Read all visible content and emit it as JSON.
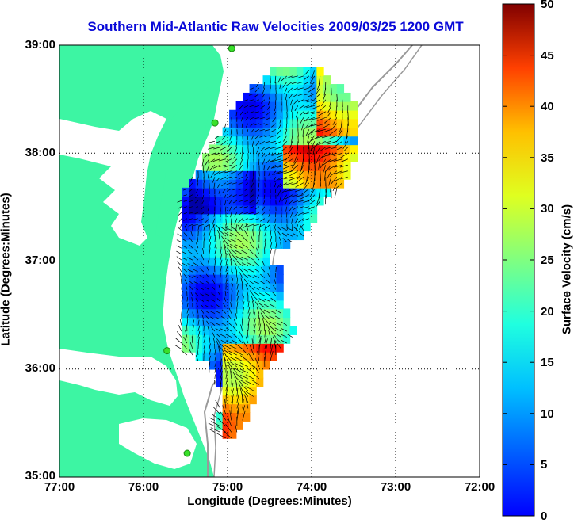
{
  "title": "Southern Mid-Atlantic Raw Velocities 2009/03/25 1200 GMT",
  "xaxis": {
    "label": "Longitude (Degrees:Minutes)",
    "ticks": [
      "77:00",
      "76:00",
      "75:00",
      "74:00",
      "73:00",
      "72:00"
    ],
    "range": [
      -77,
      -72
    ]
  },
  "yaxis": {
    "label": "Latitude (Degrees:Minutes)",
    "ticks": [
      "39:00",
      "38:00",
      "37:00",
      "36:00",
      "35:00"
    ],
    "range": [
      35,
      39
    ]
  },
  "colorbar": {
    "label": "Surface Velocity (cm/s)",
    "ticks": [
      "50",
      "45",
      "40",
      "35",
      "30",
      "25",
      "20",
      "15",
      "10",
      "5",
      "0"
    ],
    "range": [
      0,
      50
    ],
    "colormap": "jet"
  },
  "colors": {
    "land": "#3df5a3",
    "coastline": "#000000",
    "isobath": "#9a9a9a",
    "station": "#39e02a",
    "title": "#0a0ad8"
  },
  "grid": "dotted",
  "stations": [
    {
      "lon": -74.95,
      "lat": 38.97
    },
    {
      "lon": -75.15,
      "lat": 38.28
    },
    {
      "lon": -75.72,
      "lat": 36.17
    },
    {
      "lon": -75.48,
      "lat": 35.22
    }
  ]
}
